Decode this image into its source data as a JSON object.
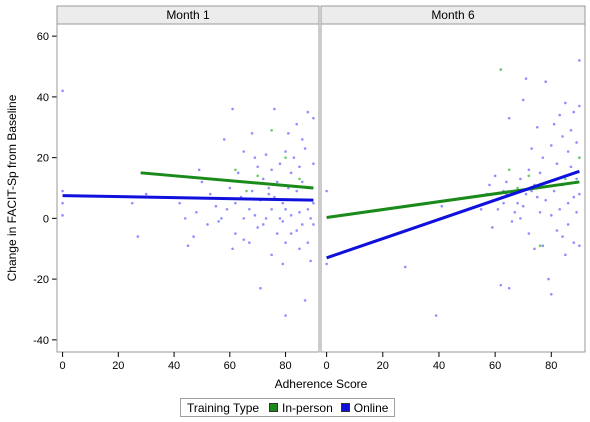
{
  "chart_data": {
    "type": "scatter",
    "ylabel": "Change in FACIT-Sp from Baseline",
    "xlabel": "Adherence Score",
    "legend_title": "Training Type",
    "legend_position": "bottom",
    "ylim": [
      -44,
      64
    ],
    "yticks": [
      -40,
      -20,
      0,
      20,
      40,
      60
    ],
    "xlim": [
      -2,
      92
    ],
    "xticks": [
      0,
      20,
      40,
      60,
      80
    ],
    "grid": false,
    "series_styles": [
      {
        "key": "inperson",
        "name": "In-person",
        "color": "#1a8a1a"
      },
      {
        "key": "online",
        "name": "Online",
        "color": "#1010dd"
      }
    ],
    "panels": [
      {
        "title": "Month 1",
        "lines": [
          {
            "series": "inperson",
            "x": [
              28,
              90
            ],
            "y": [
              15,
              10
            ]
          },
          {
            "series": "online",
            "x": [
              0,
              90
            ],
            "y": [
              7.5,
              6
            ]
          }
        ],
        "points_online": [
          [
            0,
            42
          ],
          [
            0,
            9
          ],
          [
            0,
            5
          ],
          [
            0,
            1
          ],
          [
            25,
            5
          ],
          [
            27,
            -6
          ],
          [
            30,
            8
          ],
          [
            42,
            5
          ],
          [
            44,
            0
          ],
          [
            45,
            -9
          ],
          [
            47,
            -6
          ],
          [
            48,
            2
          ],
          [
            49,
            16
          ],
          [
            50,
            12
          ],
          [
            52,
            -2
          ],
          [
            53,
            8
          ],
          [
            55,
            4
          ],
          [
            56,
            -1
          ],
          [
            57,
            0
          ],
          [
            58,
            26
          ],
          [
            59,
            3
          ],
          [
            60,
            10
          ],
          [
            61,
            36
          ],
          [
            61,
            -10
          ],
          [
            62,
            5
          ],
          [
            62,
            -5
          ],
          [
            63,
            15
          ],
          [
            64,
            7
          ],
          [
            65,
            22
          ],
          [
            65,
            0
          ],
          [
            66,
            12
          ],
          [
            67,
            -8
          ],
          [
            67,
            3
          ],
          [
            68,
            28
          ],
          [
            68,
            9
          ],
          [
            69,
            1
          ],
          [
            69,
            20
          ],
          [
            70,
            -3
          ],
          [
            70,
            17
          ],
          [
            71,
            -23
          ],
          [
            71,
            6
          ],
          [
            72,
            13
          ],
          [
            72,
            -2
          ],
          [
            73,
            0
          ],
          [
            73,
            21
          ],
          [
            74,
            8
          ],
          [
            74,
            10
          ],
          [
            75,
            -12
          ],
          [
            75,
            3
          ],
          [
            75,
            16
          ],
          [
            76,
            36
          ],
          [
            76,
            7
          ],
          [
            77,
            -5
          ],
          [
            77,
            12
          ],
          [
            78,
            0
          ],
          [
            78,
            18
          ],
          [
            79,
            5
          ],
          [
            79,
            -1
          ],
          [
            80,
            22
          ],
          [
            80,
            -8
          ],
          [
            80,
            3
          ],
          [
            81,
            10
          ],
          [
            81,
            28
          ],
          [
            82,
            1
          ],
          [
            82,
            -5
          ],
          [
            82,
            15
          ],
          [
            83,
            20
          ],
          [
            83,
            6
          ],
          [
            84,
            31
          ],
          [
            84,
            -4
          ],
          [
            84,
            9
          ],
          [
            85,
            2
          ],
          [
            85,
            -10
          ],
          [
            85,
            17
          ],
          [
            86,
            12
          ],
          [
            86,
            -2
          ],
          [
            86,
            26
          ],
          [
            87,
            6
          ],
          [
            87,
            -27
          ],
          [
            87,
            23
          ],
          [
            88,
            35
          ],
          [
            88,
            3
          ],
          [
            88,
            -8
          ],
          [
            89,
            10
          ],
          [
            89,
            -14
          ],
          [
            89,
            0
          ],
          [
            90,
            33
          ],
          [
            90,
            18
          ],
          [
            90,
            -2
          ],
          [
            90,
            5
          ],
          [
            80,
            -32
          ],
          [
            79,
            -15
          ],
          [
            65,
            -7
          ]
        ],
        "points_inperson": [
          [
            62,
            16
          ],
          [
            70,
            14
          ],
          [
            75,
            29
          ],
          [
            80,
            20
          ],
          [
            85,
            13
          ],
          [
            88,
            10
          ],
          [
            66,
            9
          ]
        ]
      },
      {
        "title": "Month 6",
        "lines": [
          {
            "series": "inperson",
            "x": [
              0,
              90
            ],
            "y": [
              0.3,
              12
            ]
          },
          {
            "series": "online",
            "x": [
              0,
              90
            ],
            "y": [
              -13,
              15.5
            ]
          }
        ],
        "points_online": [
          [
            0,
            -15
          ],
          [
            0,
            9
          ],
          [
            28,
            -16
          ],
          [
            39,
            -32
          ],
          [
            41,
            4
          ],
          [
            55,
            3
          ],
          [
            57,
            8
          ],
          [
            58,
            11
          ],
          [
            59,
            -3
          ],
          [
            60,
            6
          ],
          [
            60,
            14
          ],
          [
            61,
            3
          ],
          [
            62,
            49
          ],
          [
            62,
            -22
          ],
          [
            63,
            5
          ],
          [
            63,
            9
          ],
          [
            64,
            8
          ],
          [
            64,
            12
          ],
          [
            65,
            -23
          ],
          [
            65,
            33
          ],
          [
            66,
            -1
          ],
          [
            67,
            2
          ],
          [
            68,
            5
          ],
          [
            68,
            10
          ],
          [
            69,
            13
          ],
          [
            69,
            0
          ],
          [
            70,
            39
          ],
          [
            70,
            4
          ],
          [
            71,
            8
          ],
          [
            71,
            46
          ],
          [
            72,
            -5
          ],
          [
            72,
            16
          ],
          [
            73,
            9
          ],
          [
            73,
            23
          ],
          [
            74,
            -10
          ],
          [
            74,
            11
          ],
          [
            75,
            7
          ],
          [
            75,
            30
          ],
          [
            76,
            15
          ],
          [
            76,
            2
          ],
          [
            77,
            20
          ],
          [
            77,
            -9
          ],
          [
            78,
            6
          ],
          [
            78,
            45
          ],
          [
            79,
            -20
          ],
          [
            79,
            12
          ],
          [
            80,
            24
          ],
          [
            80,
            1
          ],
          [
            80,
            -25
          ],
          [
            81,
            31
          ],
          [
            81,
            9
          ],
          [
            82,
            18
          ],
          [
            82,
            -4
          ],
          [
            83,
            34
          ],
          [
            83,
            3
          ],
          [
            84,
            11
          ],
          [
            84,
            27
          ],
          [
            84,
            -6
          ],
          [
            85,
            38
          ],
          [
            85,
            14
          ],
          [
            85,
            -12
          ],
          [
            86,
            5
          ],
          [
            86,
            22
          ],
          [
            86,
            -2
          ],
          [
            87,
            29
          ],
          [
            87,
            17
          ],
          [
            88,
            7
          ],
          [
            88,
            -8
          ],
          [
            88,
            35
          ],
          [
            89,
            13
          ],
          [
            89,
            2
          ],
          [
            89,
            25
          ],
          [
            90,
            52
          ],
          [
            90,
            20
          ],
          [
            90,
            8
          ],
          [
            90,
            -9
          ],
          [
            90,
            37
          ]
        ],
        "points_inperson": [
          [
            62,
            49
          ],
          [
            65,
            16
          ],
          [
            68,
            10
          ],
          [
            72,
            14
          ],
          [
            76,
            -9
          ],
          [
            85,
            13
          ],
          [
            90,
            20
          ]
        ]
      }
    ]
  }
}
